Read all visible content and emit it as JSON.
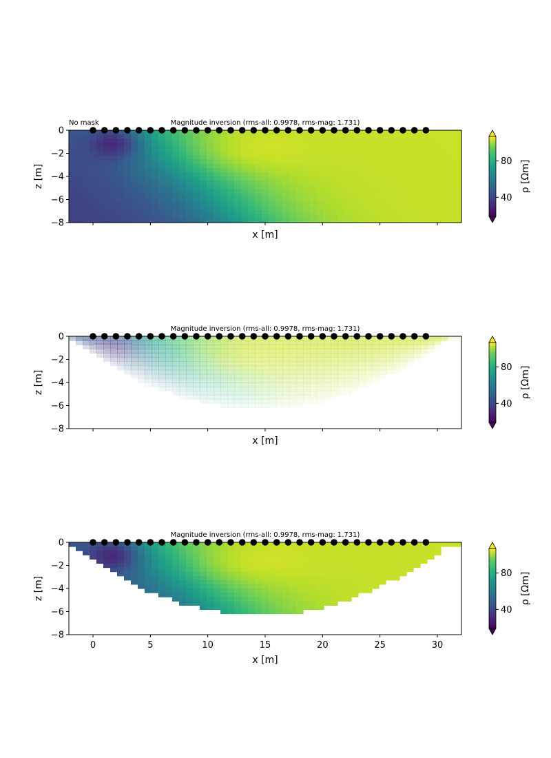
{
  "figure": {
    "panels": [
      {
        "id": "p1",
        "title": "Magnitude inversion (rms-all: 0.9978, rms-mag: 1.731)",
        "corner_label": "No mask",
        "xlabel": "x [m]",
        "ylabel": "z [m]",
        "colorbar_label": "ρ [Ωm]"
      },
      {
        "id": "p2",
        "title": "Magnitude inversion (rms-all: 0.9978, rms-mag: 1.731)",
        "corner_label": "",
        "xlabel": "x [m]",
        "ylabel": "z [m]",
        "colorbar_label": "ρ [Ωm]"
      },
      {
        "id": "p3",
        "title": "Magnitude inversion (rms-all: 0.9978, rms-mag: 1.731)",
        "corner_label": "",
        "xlabel": "x [m]",
        "ylabel": "z [m]",
        "colorbar_label": "ρ [Ωm]"
      }
    ]
  },
  "chart_data": [
    {
      "type": "heatmap",
      "title": "Magnitude inversion (rms-all: 0.9978, rms-mag: 1.731)",
      "annotation": "No mask",
      "xlabel": "x [m]",
      "ylabel": "z [m]",
      "xlim": [
        -2.1,
        32.1
      ],
      "ylim": [
        -8,
        0
      ],
      "xticks": [],
      "yticks": [
        0,
        -2,
        -4,
        -6,
        -8
      ],
      "electrodes_x": [
        0,
        1,
        2,
        3,
        4,
        5,
        6,
        7,
        8,
        9,
        10,
        11,
        12,
        13,
        14,
        15,
        16,
        17,
        18,
        19,
        20,
        21,
        22,
        23,
        24,
        25,
        26,
        27,
        28,
        29
      ],
      "electrodes_z": 0,
      "colorbar": {
        "label": "ρ [Ωm]",
        "ticks": [
          40,
          80
        ],
        "range": [
          19,
          107
        ],
        "colormap": "viridis",
        "extend": "both"
      },
      "mask": "none",
      "description_values": {
        "low_anomaly_center": [
          2,
          -1
        ],
        "low_value": 20,
        "high_value": 100
      }
    },
    {
      "type": "heatmap",
      "title": "Magnitude inversion (rms-all: 0.9978, rms-mag: 1.731)",
      "xlabel": "x [m]",
      "ylabel": "z [m]",
      "xlim": [
        -2.1,
        32.1
      ],
      "ylim": [
        -8,
        0
      ],
      "xticks": [],
      "yticks": [
        0,
        -2,
        -4,
        -6,
        -8
      ],
      "electrodes_x": [
        0,
        1,
        2,
        3,
        4,
        5,
        6,
        7,
        8,
        9,
        10,
        11,
        12,
        13,
        14,
        15,
        16,
        17,
        18,
        19,
        20,
        21,
        22,
        23,
        24,
        25,
        26,
        27,
        28,
        29
      ],
      "electrodes_z": 0,
      "colorbar": {
        "label": "ρ [Ωm]",
        "ticks": [
          40,
          80
        ],
        "range": [
          19,
          107
        ],
        "colormap": "viridis",
        "extend": "both"
      },
      "mask": "alpha-coverage"
    },
    {
      "type": "heatmap",
      "title": "Magnitude inversion (rms-all: 0.9978, rms-mag: 1.731)",
      "xlabel": "x [m]",
      "ylabel": "z [m]",
      "xlim": [
        -2.1,
        32.1
      ],
      "ylim": [
        -8,
        0
      ],
      "xticks": [
        0,
        5,
        10,
        15,
        20,
        25,
        30
      ],
      "yticks": [
        0,
        -2,
        -4,
        -6,
        -8
      ],
      "electrodes_x": [
        0,
        1,
        2,
        3,
        4,
        5,
        6,
        7,
        8,
        9,
        10,
        11,
        12,
        13,
        14,
        15,
        16,
        17,
        18,
        19,
        20,
        21,
        22,
        23,
        24,
        25,
        26,
        27,
        28,
        29
      ],
      "electrodes_z": 0,
      "colorbar": {
        "label": "ρ [Ωm]",
        "ticks": [
          40,
          80
        ],
        "range": [
          19,
          107
        ],
        "colormap": "viridis",
        "extend": "both"
      },
      "mask": "cut-coverage"
    }
  ]
}
